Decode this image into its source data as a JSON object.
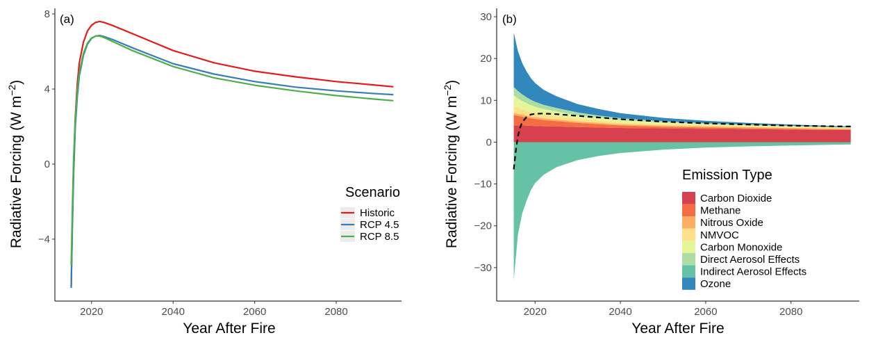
{
  "chart_data": [
    {
      "type": "line",
      "panel_label": "(a)",
      "xlabel": "Year After Fire",
      "ylabel": "Radiative Forcing (W m",
      "ylabel_sup": "−2",
      "ylabel_close": ")",
      "xlim": [
        2011,
        2096
      ],
      "ylim": [
        -7.3,
        8.3
      ],
      "xticks": [
        2020,
        2040,
        2060,
        2080
      ],
      "yticks": [
        -4,
        0,
        4,
        8
      ],
      "grid": false,
      "legend": {
        "title": "Scenario",
        "placement": "bottom-right"
      },
      "series": [
        {
          "name": "Historic",
          "color": "#e41a1c",
          "x": [
            2015,
            2015.3,
            2015.6,
            2016,
            2016.5,
            2017,
            2018,
            2019,
            2020,
            2021,
            2022,
            2023,
            2025,
            2030,
            2040,
            2050,
            2060,
            2070,
            2080,
            2090,
            2094
          ],
          "y": [
            -6.5,
            -3.0,
            0.0,
            2.5,
            4.3,
            5.4,
            6.5,
            7.1,
            7.4,
            7.55,
            7.6,
            7.55,
            7.4,
            6.95,
            6.05,
            5.4,
            4.95,
            4.65,
            4.4,
            4.2,
            4.12
          ]
        },
        {
          "name": "RCP 4.5",
          "color": "#377eb8",
          "x": [
            2015,
            2015.3,
            2015.6,
            2016,
            2016.5,
            2017,
            2018,
            2019,
            2020,
            2021,
            2022,
            2023,
            2025,
            2030,
            2040,
            2050,
            2060,
            2070,
            2080,
            2090,
            2094
          ],
          "y": [
            -6.6,
            -3.3,
            -0.5,
            2.0,
            3.6,
            4.7,
            5.8,
            6.4,
            6.7,
            6.82,
            6.85,
            6.8,
            6.65,
            6.2,
            5.35,
            4.8,
            4.4,
            4.1,
            3.9,
            3.75,
            3.7
          ]
        },
        {
          "name": "RCP 8.5",
          "color": "#4daf4a",
          "x": [
            2015,
            2015.3,
            2015.6,
            2016,
            2016.5,
            2017,
            2018,
            2019,
            2020,
            2021,
            2022,
            2023,
            2025,
            2030,
            2040,
            2050,
            2060,
            2070,
            2080,
            2090,
            2094
          ],
          "y": [
            -5.4,
            -2.4,
            0.3,
            2.4,
            3.9,
            4.9,
            5.9,
            6.45,
            6.72,
            6.82,
            6.82,
            6.75,
            6.55,
            6.05,
            5.2,
            4.6,
            4.2,
            3.9,
            3.65,
            3.45,
            3.38
          ]
        }
      ]
    },
    {
      "type": "area",
      "stacked": true,
      "panel_label": "(b)",
      "xlabel": "Year After Fire",
      "ylabel": "Radiative Forcing (W m",
      "ylabel_sup": "−2",
      "ylabel_close": ")",
      "xlim": [
        2011,
        2096
      ],
      "ylim": [
        -38,
        32
      ],
      "xticks": [
        2020,
        2040,
        2060,
        2080
      ],
      "yticks": [
        -30,
        -20,
        -10,
        0,
        10,
        20,
        30
      ],
      "grid": false,
      "legend": {
        "title": "Emission Type",
        "placement": "bottom-right"
      },
      "x": [
        2015,
        2016,
        2017,
        2018,
        2019,
        2020,
        2022,
        2025,
        2030,
        2035,
        2040,
        2050,
        2060,
        2070,
        2080,
        2090,
        2094
      ],
      "series": [
        {
          "name": "Carbon Dioxide",
          "color": "#d7404f",
          "values": [
            4.0,
            4.0,
            4.0,
            3.95,
            3.9,
            3.85,
            3.8,
            3.75,
            3.6,
            3.5,
            3.4,
            3.3,
            3.2,
            3.1,
            3.0,
            2.9,
            2.9
          ]
        },
        {
          "name": "Methane",
          "color": "#f46d43",
          "values": [
            2.5,
            2.3,
            2.1,
            1.95,
            1.8,
            1.7,
            1.5,
            1.3,
            1.0,
            0.8,
            0.6,
            0.4,
            0.3,
            0.25,
            0.2,
            0.15,
            0.12
          ]
        },
        {
          "name": "Nitrous Oxide",
          "color": "#fdae61",
          "values": [
            0.5,
            0.48,
            0.46,
            0.44,
            0.43,
            0.42,
            0.4,
            0.38,
            0.35,
            0.32,
            0.3,
            0.28,
            0.26,
            0.24,
            0.22,
            0.2,
            0.2
          ]
        },
        {
          "name": "NMVOC",
          "color": "#fee08b",
          "values": [
            1.6,
            1.4,
            1.25,
            1.15,
            1.05,
            0.95,
            0.85,
            0.75,
            0.6,
            0.5,
            0.42,
            0.32,
            0.25,
            0.2,
            0.16,
            0.13,
            0.12
          ]
        },
        {
          "name": "Carbon Monoxide",
          "color": "#e6f598",
          "values": [
            2.6,
            2.3,
            2.05,
            1.85,
            1.7,
            1.55,
            1.35,
            1.15,
            0.9,
            0.72,
            0.6,
            0.42,
            0.32,
            0.25,
            0.2,
            0.16,
            0.15
          ]
        },
        {
          "name": "Direct Aerosol Effects",
          "color": "#abdda4",
          "values": [
            2.0,
            1.75,
            1.55,
            1.4,
            1.28,
            1.18,
            1.02,
            0.85,
            0.65,
            0.52,
            0.42,
            0.3,
            0.22,
            0.17,
            0.13,
            0.1,
            0.09
          ]
        },
        {
          "name": "Indirect Aerosol Effects",
          "color": "#66c2a5",
          "values": [
            -33.0,
            -22.0,
            -17.0,
            -14.0,
            -11.5,
            -9.8,
            -7.8,
            -6.0,
            -4.3,
            -3.3,
            -2.6,
            -1.8,
            -1.3,
            -1.0,
            -0.8,
            -0.6,
            -0.55
          ]
        },
        {
          "name": "Ozone",
          "color": "#3288bd",
          "values": [
            13.0,
            9.5,
            7.5,
            6.2,
            5.2,
            4.5,
            3.6,
            2.8,
            2.0,
            1.55,
            1.2,
            0.8,
            0.55,
            0.4,
            0.3,
            0.22,
            0.2
          ]
        }
      ],
      "net_line": {
        "style": "dashed",
        "color": "#000000",
        "x": [
          2015,
          2015.5,
          2016,
          2016.5,
          2017,
          2018,
          2019,
          2020,
          2022,
          2025,
          2030,
          2040,
          2050,
          2060,
          2070,
          2080,
          2090,
          2094
        ],
        "y": [
          -6.5,
          -2.0,
          1.5,
          3.5,
          4.8,
          6.0,
          6.6,
          6.8,
          6.85,
          6.7,
          6.3,
          5.5,
          4.9,
          4.5,
          4.2,
          3.95,
          3.8,
          3.75
        ]
      }
    }
  ]
}
